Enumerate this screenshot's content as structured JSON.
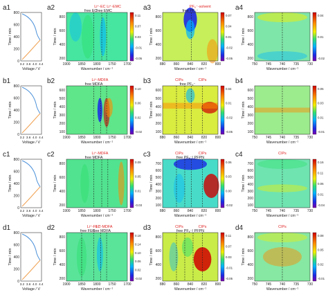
{
  "figure": {
    "rows": [
      {
        "id": "a",
        "panel_labels": [
          "a1",
          "a2",
          "a3",
          "a4"
        ],
        "voltage_profile": {
          "xlabel": "Voltage / V",
          "ylabel": "Time / min",
          "yticks": [
            "800",
            "600",
            "400",
            "200",
            "0"
          ],
          "xticks": [
            "3.2",
            "3.6",
            "4.0",
            "4.4"
          ]
        },
        "map2": {
          "annotations_red": [
            "Li⁺-EC",
            "Li⁺-EMC"
          ],
          "annotations_black": [
            "free EC",
            "free EMC"
          ],
          "ylabel": "Time / min",
          "xlabel": "Wavenumber / cm⁻¹",
          "yticks": [
            "800",
            "600",
            "400",
            "200"
          ],
          "xticks": [
            "1900",
            "1850",
            "1800",
            "1750",
            "1700"
          ],
          "colorbar_ticks": [
            "0.11",
            "0.07",
            "0.03",
            "-0.01",
            "-0.05"
          ]
        },
        "map3": {
          "annotations_red": [
            "PF₆⁻-solvent"
          ],
          "annotations_black": [
            "free PF₆⁻"
          ],
          "ylabel": "Time / min",
          "xlabel": "Wavenumber / cm⁻¹",
          "yticks": [
            "800",
            "600",
            "400",
            "200"
          ],
          "xticks": [
            "880",
            "860",
            "840",
            "820",
            "800"
          ],
          "colorbar_ticks": [
            "0.07",
            "0.04",
            "0.01",
            "-0.02",
            "-0.05"
          ]
        },
        "map4": {
          "annotations_red": [],
          "ylabel": "Time / min",
          "xlabel": "Wavenumber / cm⁻¹",
          "yticks": [
            "800",
            "600",
            "400",
            "200"
          ],
          "xticks": [
            "750",
            "745",
            "740",
            "735",
            "730"
          ],
          "colorbar_ticks": [
            "0.04",
            "0.01",
            "-0.02"
          ]
        }
      },
      {
        "id": "b",
        "panel_labels": [
          "b1",
          "b2",
          "b3",
          "b4"
        ],
        "voltage_profile": {
          "xlabel": "Voltage / V",
          "ylabel": "Time / min",
          "yticks": [
            "800",
            "600",
            "400",
            "200",
            "0"
          ],
          "xticks": [
            "3.2",
            "3.6",
            "4.0",
            "4.4"
          ]
        },
        "map2": {
          "annotations_red": [
            "Li⁺-MDFA"
          ],
          "annotations_black": [
            "free MDFA"
          ],
          "ylabel": "Time / min",
          "xlabel": "Wavenumber / cm⁻¹",
          "yticks": [
            "600",
            "500",
            "400",
            "300",
            "200",
            "100"
          ],
          "xticks": [
            "1900",
            "1850",
            "1800",
            "1750",
            "1700"
          ],
          "colorbar_ticks": [
            "0.10",
            "0.06",
            "0.02",
            "-0.02"
          ]
        },
        "map3": {
          "annotations_red": [
            "CIPs",
            "CIPs"
          ],
          "annotations_black": [
            "free PF₆⁻"
          ],
          "ylabel": "Time / min",
          "xlabel": "Wavenumber / cm⁻¹",
          "yticks": [
            "600",
            "500",
            "400",
            "300",
            "200",
            "100"
          ],
          "xticks": [
            "880",
            "860",
            "840",
            "820",
            "800"
          ],
          "colorbar_ticks": [
            "0.04",
            "0.01",
            "-0.02",
            "-0.05"
          ]
        },
        "map4": {
          "annotations_red": [],
          "ylabel": "Time / min",
          "xlabel": "Wavenumber / cm⁻¹",
          "yticks": [
            "600",
            "500",
            "400",
            "300",
            "200",
            "100"
          ],
          "xticks": [
            "750",
            "745",
            "740",
            "735",
            "730"
          ],
          "colorbar_ticks": [
            "0.05",
            "0.03",
            "0.01",
            "-0.01"
          ]
        }
      },
      {
        "id": "c",
        "panel_labels": [
          "c1",
          "c2",
          "c3",
          "c4"
        ],
        "voltage_profile": {
          "xlabel": "Voltage / V",
          "ylabel": "Time / min",
          "yticks": [
            "800",
            "600",
            "400",
            "200",
            "0"
          ],
          "xticks": [
            "3.2",
            "3.6",
            "4.0",
            "4.4"
          ]
        },
        "map2": {
          "annotations_red": [
            "Li⁺-MDFA"
          ],
          "annotations_black": [
            "free MDFA"
          ],
          "ylabel": "Time / min",
          "xlabel": "Wavenumber / cm⁻¹",
          "yticks": [
            "800",
            "600",
            "400",
            "200"
          ],
          "xticks": [
            "1900",
            "1850",
            "1800",
            "1750",
            "1700"
          ],
          "colorbar_ticks": [
            "0.09",
            "0.05",
            "0.01",
            "-0.03"
          ]
        },
        "map3": {
          "annotations_red": [
            "CIPs",
            "CIPs"
          ],
          "annotations_black": [
            "free PF₆⁻/ PFPN"
          ],
          "ylabel": "Time / min",
          "xlabel": "Wavenumber / cm⁻¹",
          "yticks": [
            "700",
            "600",
            "500",
            "400",
            "300",
            "200",
            "100"
          ],
          "xticks": [
            "880",
            "860",
            "840",
            "820",
            "800"
          ],
          "colorbar_ticks": [
            "0.06",
            "0.03",
            "0.00",
            "-0.02"
          ]
        },
        "map4": {
          "annotations_red": [
            "CIPs"
          ],
          "ylabel": "Time / min",
          "xlabel": "Wavenumber / cm⁻¹",
          "yticks": [
            "700",
            "600",
            "500",
            "400",
            "300",
            "200",
            "100"
          ],
          "xticks": [
            "750",
            "745",
            "740",
            "735",
            "730"
          ],
          "colorbar_ticks": [
            "0.16",
            "0.11",
            "0.06",
            "0.01",
            "-0.04"
          ]
        }
      },
      {
        "id": "d",
        "panel_labels": [
          "d1",
          "d2",
          "d3",
          "d4"
        ],
        "voltage_profile": {
          "xlabel": "Voltage / V",
          "ylabel": "Time / min",
          "yticks": [
            "800",
            "600",
            "400",
            "200",
            "0"
          ],
          "xticks": [
            "3.2",
            "3.6",
            "4.0",
            "4.4"
          ]
        },
        "map2": {
          "annotations_red": [
            "Li⁺-FEC",
            "Li⁺-MDFA"
          ],
          "annotations_black": [
            "free FEC",
            "free MDFA"
          ],
          "ylabel": "Time / min",
          "xlabel": "Wavenumber / cm⁻¹",
          "yticks": [
            "800",
            "600",
            "400",
            "200"
          ],
          "xticks": [
            "1900",
            "1850",
            "1800",
            "1750",
            "1700"
          ],
          "colorbar_ticks": [
            "0.18",
            "0.14",
            "0.10",
            "0.06",
            "0.02",
            "-0.02"
          ]
        },
        "map3": {
          "annotations_red": [
            "CIPs",
            "CIPs"
          ],
          "annotations_black": [
            "free PF₆⁻/ PFPN"
          ],
          "ylabel": "Time / min",
          "xlabel": "Wavenumber / cm⁻¹",
          "yticks": [
            "800",
            "600",
            "400",
            "200"
          ],
          "xticks": [
            "880",
            "860",
            "840",
            "820",
            "800"
          ],
          "colorbar_ticks": [
            "0.11",
            "0.07",
            "0.03",
            "-0.01",
            "-0.05"
          ]
        },
        "map4": {
          "annotations_red": [
            "CIPs"
          ],
          "ylabel": "Time / min",
          "xlabel": "Wavenumber / cm⁻¹",
          "yticks": [
            "800",
            "600",
            "400",
            "200"
          ],
          "xticks": [
            "750",
            "745",
            "740",
            "735",
            "730"
          ],
          "colorbar_ticks": [
            "0.08",
            "0.05",
            "0.02",
            "-0.01"
          ]
        }
      }
    ],
    "colors": {
      "charge_curve": "#4a90d9",
      "discharge_curve": "#f0a050",
      "annotation_red": "#e02020",
      "colormap": "jet"
    }
  }
}
